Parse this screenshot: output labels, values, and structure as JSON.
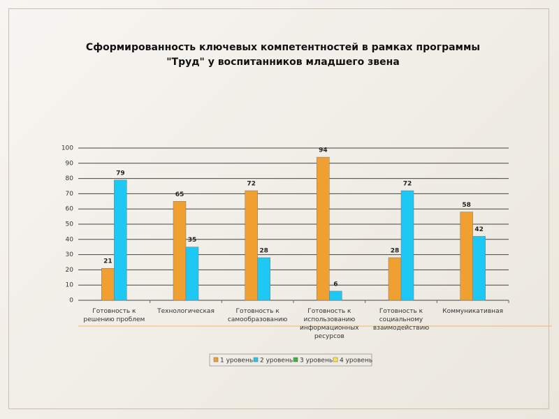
{
  "chart_data": {
    "type": "bar",
    "title": [
      "Сформированность ключевых компетентностей в рамках программы",
      "\"Труд\" у воспитанников младшего звена"
    ],
    "categories": [
      "Готовность к решению проблем",
      "Технологическая",
      "Готовность к самообразованию",
      "Готовность к использованию информационных ресурсов",
      "Готовность к социальному взаимодействию",
      "Коммуникативная"
    ],
    "series": [
      {
        "name": "1 уровень",
        "color": "#f0a030",
        "values": [
          21,
          65,
          72,
          94,
          28,
          58
        ]
      },
      {
        "name": "2 уровень",
        "color": "#1ec8f5",
        "values": [
          79,
          35,
          28,
          6,
          72,
          42
        ]
      },
      {
        "name": "3 уровень",
        "color": "#3cb043",
        "values": [
          null,
          null,
          null,
          null,
          null,
          null
        ]
      },
      {
        "name": "4 уровень",
        "color": "#f5e84a",
        "values": [
          null,
          null,
          null,
          null,
          null,
          null
        ]
      }
    ],
    "ylim": [
      0,
      100
    ],
    "yticks": [
      0,
      10,
      20,
      30,
      40,
      50,
      60,
      70,
      80,
      90,
      100
    ],
    "grid": true,
    "legend": "bottom"
  }
}
